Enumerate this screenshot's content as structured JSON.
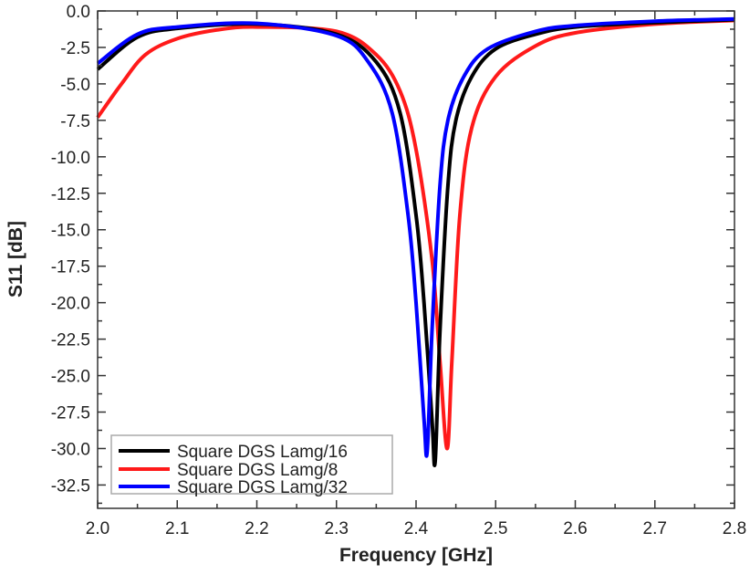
{
  "chart_data": {
    "type": "line",
    "title": "",
    "xlabel": "Frequency [GHz]",
    "ylabel": "S11 [dB]",
    "xlim": [
      2.0,
      2.8
    ],
    "ylim": [
      -34.1,
      0.0
    ],
    "xticks": [
      "2.0",
      "2.1",
      "2.2",
      "2.3",
      "2.4",
      "2.5",
      "2.6",
      "2.7",
      "2.8"
    ],
    "yticks": [
      "0.0",
      "-2.5",
      "-5.0",
      "-7.5",
      "-10.0",
      "-12.5",
      "-15.0",
      "-17.5",
      "-20.0",
      "-22.5",
      "-25.0",
      "-27.5",
      "-30.0",
      "-32.5"
    ],
    "grid": false,
    "legend_position": "bottom-left",
    "series": [
      {
        "name": "Square DGS Lamg/16",
        "color": "#000000",
        "x": [
          2.0,
          2.05,
          2.1,
          2.2,
          2.3,
          2.35,
          2.38,
          2.4,
          2.41,
          2.42,
          2.424,
          2.43,
          2.44,
          2.45,
          2.47,
          2.5,
          2.55,
          2.6,
          2.7,
          2.8
        ],
        "y": [
          -4.0,
          -1.8,
          -1.2,
          -0.9,
          -1.6,
          -3.5,
          -7.0,
          -14.0,
          -20.0,
          -28.0,
          -30.9,
          -22.0,
          -12.0,
          -7.5,
          -4.5,
          -2.6,
          -1.6,
          -1.1,
          -0.8,
          -0.6
        ]
      },
      {
        "name": "Square DGS Lamg/8",
        "color": "#ff1a1a",
        "x": [
          2.0,
          2.03,
          2.06,
          2.1,
          2.15,
          2.2,
          2.3,
          2.35,
          2.38,
          2.4,
          2.42,
          2.43,
          2.439,
          2.445,
          2.455,
          2.47,
          2.5,
          2.55,
          2.6,
          2.7,
          2.8
        ],
        "y": [
          -7.3,
          -5.0,
          -3.0,
          -1.9,
          -1.3,
          -1.1,
          -1.4,
          -3.0,
          -5.5,
          -9.5,
          -17.0,
          -24.0,
          -30.0,
          -24.0,
          -14.0,
          -8.0,
          -4.5,
          -2.4,
          -1.5,
          -0.9,
          -0.65
        ]
      },
      {
        "name": "Square DGS Lamg/32",
        "color": "#0000ff",
        "x": [
          2.0,
          2.05,
          2.1,
          2.2,
          2.3,
          2.34,
          2.37,
          2.39,
          2.4,
          2.41,
          2.414,
          2.42,
          2.43,
          2.44,
          2.46,
          2.49,
          2.55,
          2.6,
          2.7,
          2.8
        ],
        "y": [
          -3.6,
          -1.6,
          -1.1,
          -0.85,
          -1.7,
          -3.5,
          -7.0,
          -14.0,
          -20.0,
          -28.0,
          -30.2,
          -22.0,
          -12.0,
          -7.5,
          -4.5,
          -2.6,
          -1.4,
          -1.0,
          -0.7,
          -0.55
        ]
      }
    ]
  }
}
